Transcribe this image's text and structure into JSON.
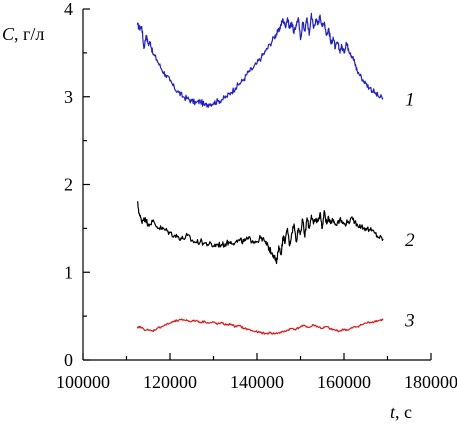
{
  "chart_data": {
    "type": "line",
    "title": "",
    "xlabel_var": "t",
    "xlabel_unit": ", с",
    "ylabel_var": "C",
    "ylabel_unit": ", г/л",
    "xlim": [
      100000,
      180000
    ],
    "ylim": [
      0,
      4
    ],
    "x_ticks": [
      100000,
      120000,
      140000,
      160000,
      180000
    ],
    "y_ticks": [
      0,
      1,
      2,
      3,
      4
    ],
    "grid": false,
    "series": [
      {
        "label": "1",
        "color": "#1f1fd0",
        "x": [
          112500,
          113000,
          113500,
          114000,
          114500,
          115000,
          115500,
          116000,
          117000,
          118000,
          119000,
          120000,
          121000,
          122000,
          123000,
          124000,
          125000,
          126000,
          127000,
          128000,
          129000,
          130000,
          131000,
          132000,
          133000,
          134000,
          135000,
          136000,
          137000,
          138000,
          139000,
          140000,
          141000,
          142000,
          143000,
          144000,
          144500,
          145000,
          145500,
          146000,
          146500,
          147000,
          147500,
          148000,
          148500,
          149000,
          149500,
          150000,
          150500,
          151000,
          151500,
          152000,
          152500,
          153000,
          153500,
          154000,
          154500,
          155000,
          155500,
          156000,
          156500,
          157000,
          157500,
          158000,
          158500,
          159000,
          159500,
          160000,
          160500,
          161000,
          161500,
          162000,
          162500,
          163000,
          164000,
          165000,
          166000,
          167000,
          168000,
          169000
        ],
        "y": [
          3.82,
          3.78,
          3.8,
          3.55,
          3.7,
          3.6,
          3.62,
          3.5,
          3.42,
          3.32,
          3.25,
          3.18,
          3.1,
          3.05,
          3.0,
          2.98,
          2.95,
          2.93,
          2.95,
          2.9,
          2.92,
          2.93,
          2.95,
          2.97,
          3.0,
          3.05,
          3.1,
          3.15,
          3.2,
          3.28,
          3.32,
          3.38,
          3.45,
          3.52,
          3.6,
          3.68,
          3.72,
          3.75,
          3.82,
          3.88,
          3.8,
          3.9,
          3.78,
          3.85,
          3.72,
          3.82,
          3.9,
          3.65,
          3.85,
          3.75,
          3.9,
          3.7,
          3.95,
          3.78,
          3.88,
          3.82,
          3.93,
          3.8,
          3.85,
          3.7,
          3.78,
          3.6,
          3.68,
          3.55,
          3.62,
          3.52,
          3.58,
          3.5,
          3.62,
          3.55,
          3.5,
          3.45,
          3.38,
          3.3,
          3.22,
          3.15,
          3.1,
          3.05,
          3.0,
          2.98
        ]
      },
      {
        "label": "2",
        "color": "#000000",
        "x": [
          112500,
          113000,
          113500,
          114000,
          115000,
          116000,
          117000,
          118000,
          119000,
          120000,
          121000,
          122000,
          123000,
          124000,
          125000,
          126000,
          127000,
          128000,
          129000,
          130000,
          131000,
          132000,
          133000,
          134000,
          135000,
          136000,
          137000,
          138000,
          139000,
          140000,
          141000,
          142000,
          142500,
          143000,
          143500,
          144000,
          144500,
          145000,
          145500,
          146000,
          146500,
          147000,
          147500,
          148000,
          148500,
          149000,
          149500,
          150000,
          150500,
          151000,
          151500,
          152000,
          152500,
          153000,
          153500,
          154000,
          154500,
          155000,
          155500,
          156000,
          156500,
          157000,
          157500,
          158000,
          159000,
          160000,
          161000,
          162000,
          163000,
          164000,
          165000,
          166000,
          167000,
          168000,
          169000
        ],
        "y": [
          1.8,
          1.65,
          1.58,
          1.62,
          1.55,
          1.58,
          1.52,
          1.5,
          1.48,
          1.45,
          1.42,
          1.4,
          1.38,
          1.42,
          1.36,
          1.34,
          1.35,
          1.33,
          1.32,
          1.3,
          1.32,
          1.31,
          1.33,
          1.35,
          1.34,
          1.36,
          1.35,
          1.38,
          1.36,
          1.35,
          1.4,
          1.33,
          1.3,
          1.25,
          1.22,
          1.18,
          1.1,
          1.3,
          1.2,
          1.4,
          1.35,
          1.5,
          1.3,
          1.45,
          1.55,
          1.35,
          1.5,
          1.45,
          1.6,
          1.4,
          1.62,
          1.5,
          1.65,
          1.55,
          1.6,
          1.58,
          1.68,
          1.5,
          1.7,
          1.55,
          1.62,
          1.58,
          1.6,
          1.55,
          1.6,
          1.55,
          1.58,
          1.6,
          1.55,
          1.52,
          1.5,
          1.48,
          1.45,
          1.4,
          1.38
        ]
      },
      {
        "label": "3",
        "color": "#e01a1a",
        "x": [
          112500,
          113000,
          114000,
          115000,
          116000,
          117000,
          118000,
          119000,
          120000,
          121000,
          122000,
          123000,
          124000,
          125000,
          126000,
          127000,
          128000,
          129000,
          130000,
          131000,
          132000,
          133000,
          134000,
          135000,
          136000,
          137000,
          138000,
          139000,
          140000,
          141000,
          142000,
          143000,
          144000,
          145000,
          146000,
          147000,
          148000,
          149000,
          150000,
          151000,
          152000,
          153000,
          154000,
          155000,
          156000,
          157000,
          158000,
          159000,
          160000,
          161000,
          162000,
          163000,
          164000,
          165000,
          166000,
          167000,
          168000,
          169000
        ],
        "y": [
          0.36,
          0.38,
          0.35,
          0.34,
          0.33,
          0.36,
          0.38,
          0.4,
          0.42,
          0.44,
          0.45,
          0.46,
          0.45,
          0.44,
          0.45,
          0.43,
          0.44,
          0.42,
          0.43,
          0.41,
          0.42,
          0.4,
          0.41,
          0.38,
          0.39,
          0.36,
          0.35,
          0.33,
          0.32,
          0.31,
          0.3,
          0.31,
          0.3,
          0.31,
          0.32,
          0.34,
          0.36,
          0.35,
          0.38,
          0.39,
          0.37,
          0.4,
          0.38,
          0.36,
          0.38,
          0.35,
          0.34,
          0.33,
          0.35,
          0.34,
          0.37,
          0.38,
          0.4,
          0.42,
          0.43,
          0.44,
          0.45,
          0.46
        ]
      }
    ]
  }
}
